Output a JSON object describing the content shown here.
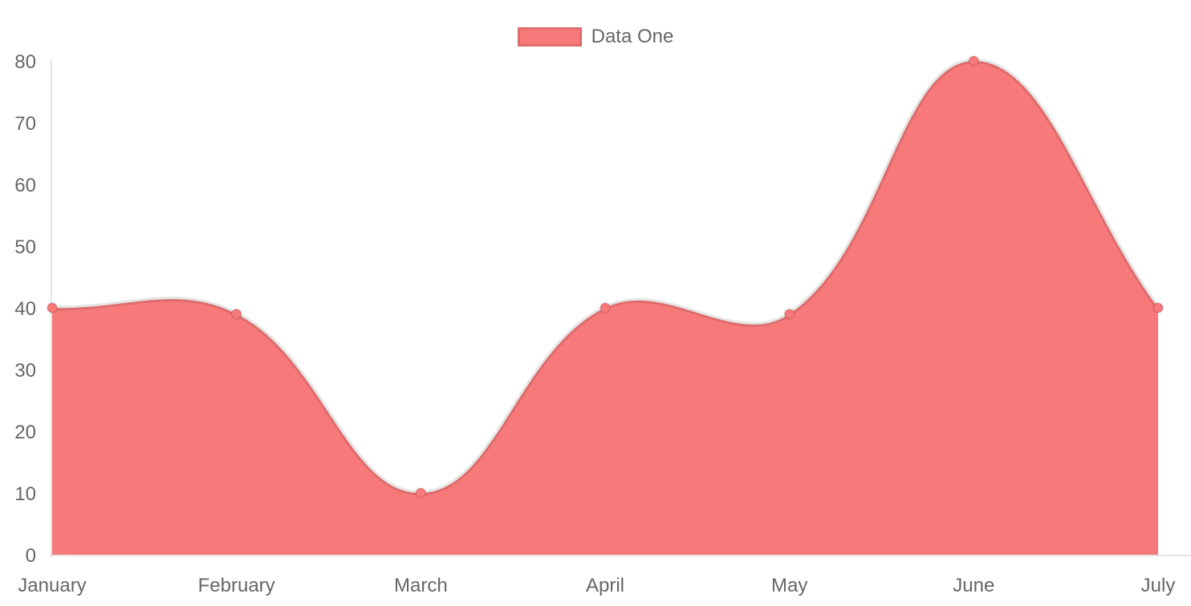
{
  "chart_data": {
    "type": "area",
    "title": "",
    "categories": [
      "January",
      "February",
      "March",
      "April",
      "May",
      "June",
      "July"
    ],
    "series": [
      {
        "name": "Data One",
        "values": [
          40,
          39,
          10,
          40,
          39,
          80,
          40
        ]
      }
    ],
    "yticks": [
      0,
      10,
      20,
      30,
      40,
      50,
      60,
      70,
      80
    ],
    "ylim": [
      0,
      80
    ],
    "xlabel": "",
    "ylabel": "",
    "grid": false,
    "legend_position": "top",
    "line_tension": 0.4
  },
  "colors": {
    "fill": "#f87979",
    "line_border": "rgba(0,0,0,0.1)",
    "point_fill": "#f87979",
    "point_border": "rgba(0,0,0,0.1)",
    "axis_line": "rgba(0,0,0,0.1)",
    "tick_text": "#666666",
    "background": "#ffffff"
  }
}
